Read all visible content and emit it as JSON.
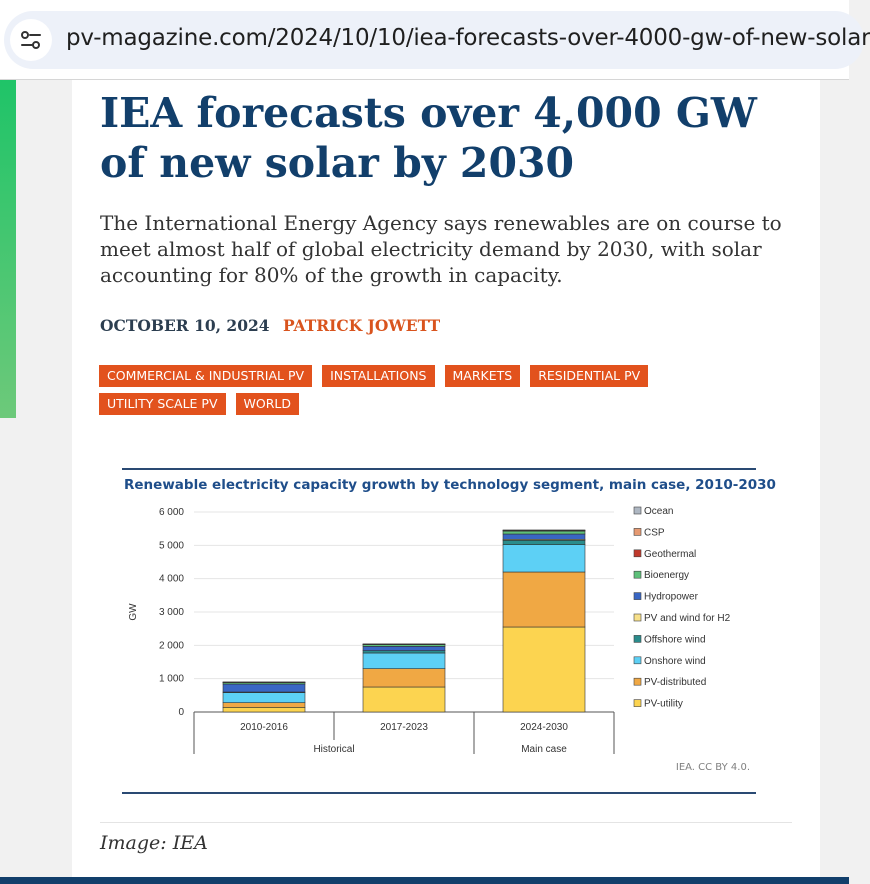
{
  "browser": {
    "url": "pv-magazine.com/2024/10/10/iea-forecasts-over-4000-gw-of-new-solar",
    "site_info_icon": "tune-icon"
  },
  "article": {
    "title": "IEA forecasts over 4,000 GW of new solar by 2030",
    "lede": "The International Energy Agency says renewables are on course to meet almost half of global electricity demand by 2030, with solar accounting for 80% of the growth in capacity.",
    "date": "OCTOBER 10, 2024",
    "author": "PATRICK JOWETT",
    "tags": [
      "COMMERCIAL & INDUSTRIAL PV",
      "INSTALLATIONS",
      "MARKETS",
      "RESIDENTIAL PV",
      "UTILITY SCALE PV",
      "WORLD"
    ],
    "image_caption": "Image: IEA"
  },
  "figure": {
    "credit": "IEA. CC BY 4.0."
  },
  "colors": {
    "title": "#123f6b",
    "accent": "#e2521d",
    "side_strip": "#1fc468"
  },
  "chart_data": {
    "type": "bar",
    "stacked": true,
    "title": "Renewable electricity capacity growth by technology segment, main case, 2010-2030",
    "ylabel": "GW",
    "ylim": [
      0,
      6000
    ],
    "yticks": [
      0,
      1000,
      2000,
      3000,
      4000,
      5000,
      6000
    ],
    "ytick_labels": [
      "0",
      "1 000",
      "2 000",
      "3 000",
      "4 000",
      "5 000",
      "6 000"
    ],
    "categories": [
      "2010-2016",
      "2017-2023",
      "2024-2030"
    ],
    "groups": [
      {
        "label": "Historical",
        "categories": [
          "2010-2016",
          "2017-2023"
        ]
      },
      {
        "label": "Main case",
        "categories": [
          "2024-2030"
        ]
      }
    ],
    "legend_position": "right",
    "grid": true,
    "series": [
      {
        "name": "PV-utility",
        "color": "#fcd450",
        "values": [
          140,
          750,
          2550
        ]
      },
      {
        "name": "PV-distributed",
        "color": "#f0a844",
        "values": [
          140,
          550,
          1650
        ]
      },
      {
        "name": "Onshore wind",
        "color": "#5dd0f5",
        "values": [
          300,
          470,
          820
        ]
      },
      {
        "name": "Offshore wind",
        "color": "#2a8c8c",
        "values": [
          20,
          70,
          130
        ]
      },
      {
        "name": "PV and wind for H2",
        "color": "#f7e08a",
        "values": [
          0,
          0,
          30
        ]
      },
      {
        "name": "Hydropower",
        "color": "#3966c4",
        "values": [
          240,
          130,
          160
        ]
      },
      {
        "name": "Bioenergy",
        "color": "#5ec07a",
        "values": [
          50,
          60,
          90
        ]
      },
      {
        "name": "Geothermal",
        "color": "#c0392b",
        "values": [
          4,
          5,
          10
        ]
      },
      {
        "name": "CSP",
        "color": "#e69a72",
        "values": [
          5,
          5,
          15
        ]
      },
      {
        "name": "Ocean",
        "color": "#aeb7c2",
        "values": [
          1,
          1,
          5
        ]
      }
    ]
  }
}
